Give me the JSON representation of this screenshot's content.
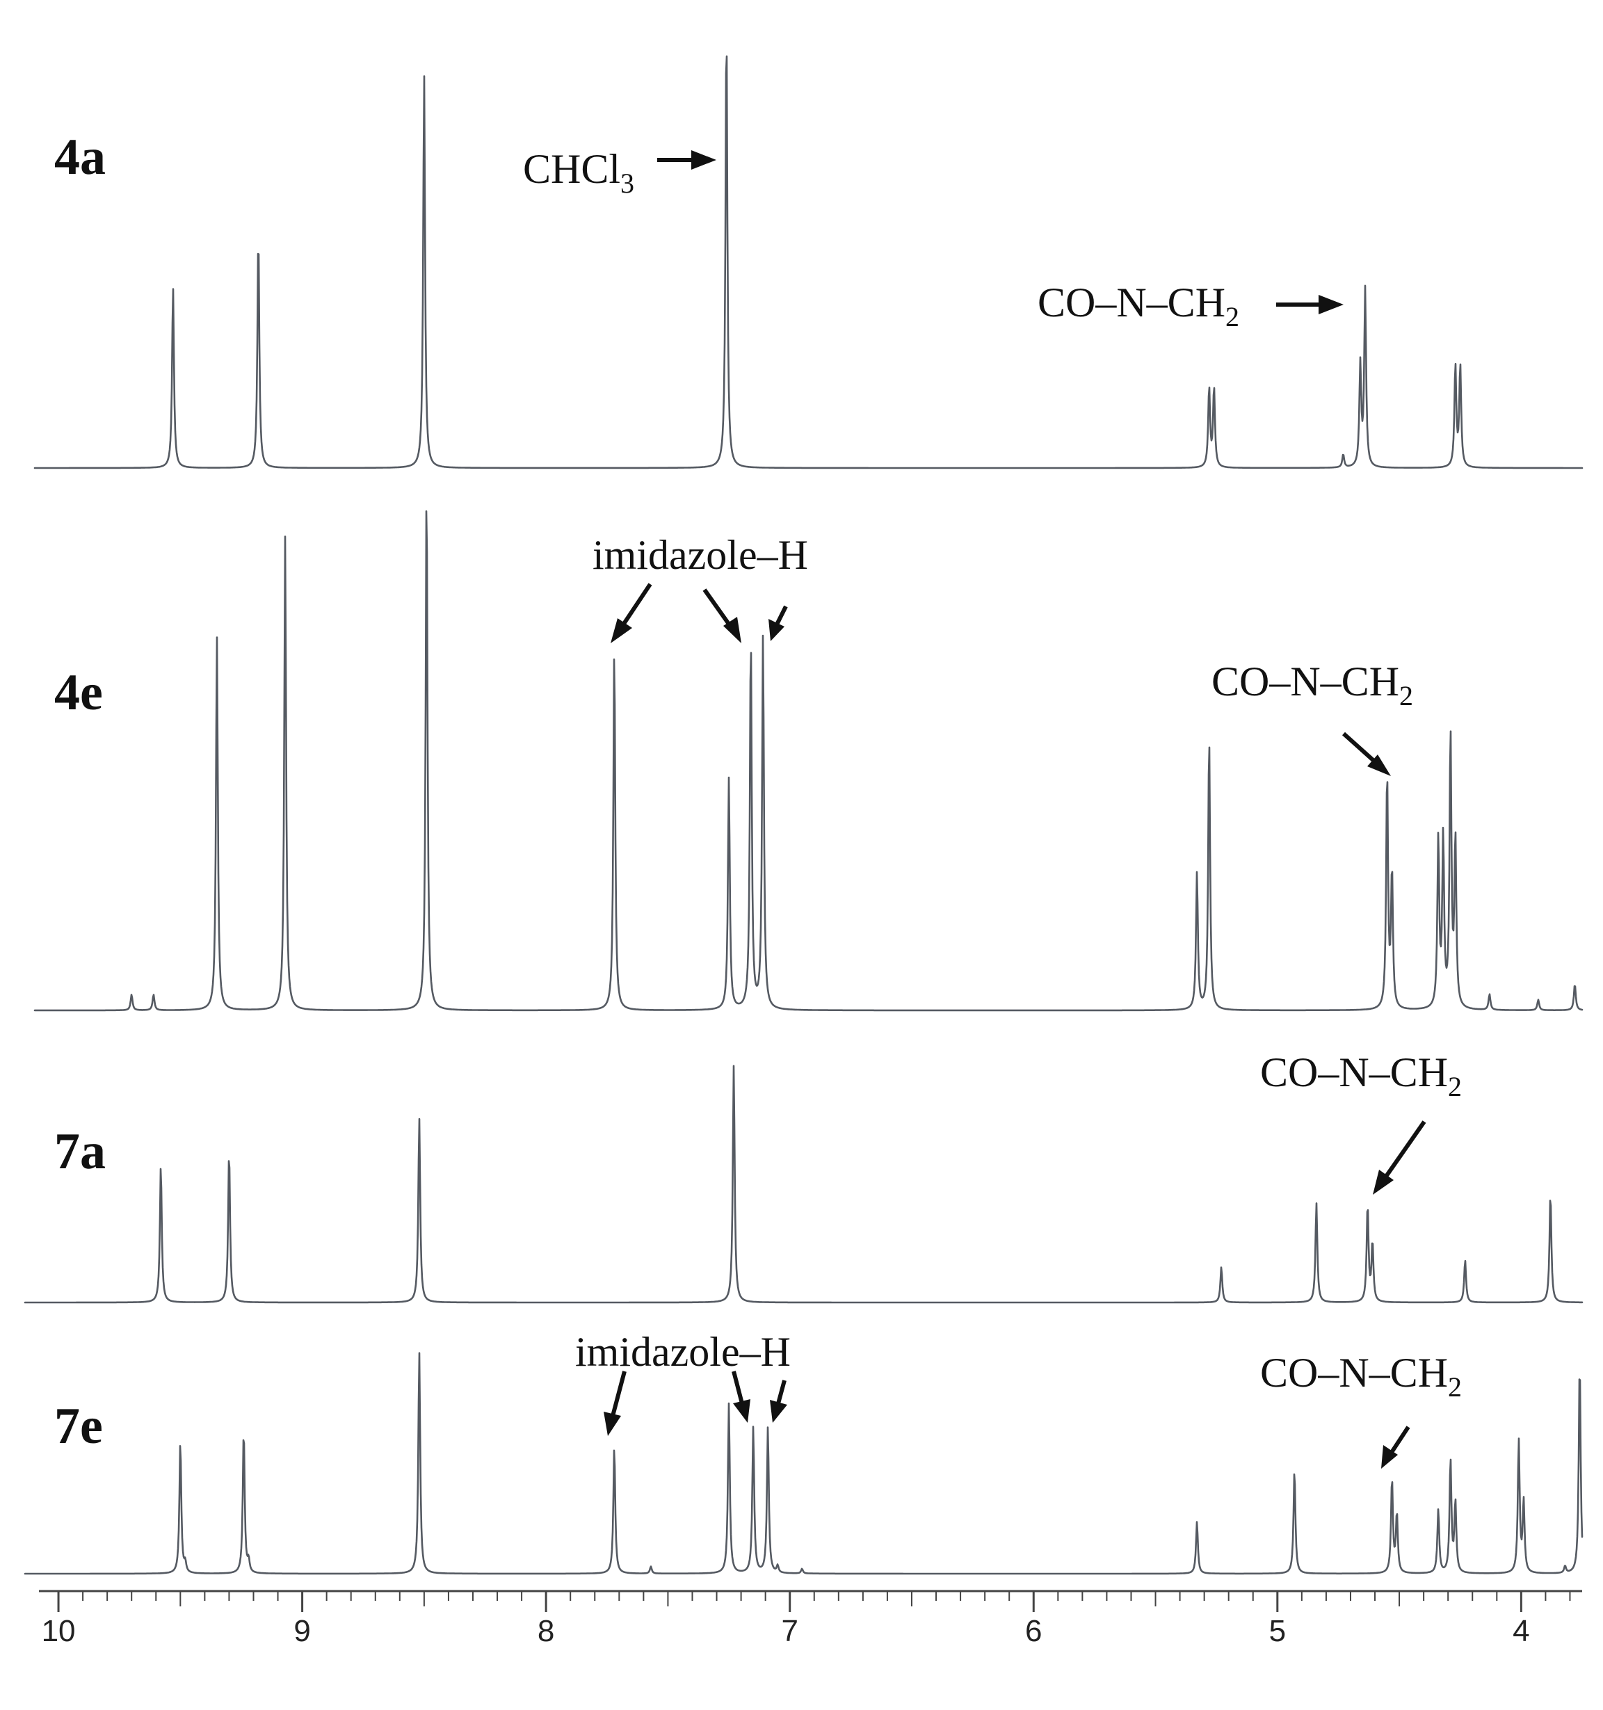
{
  "chart_data": {
    "type": "line",
    "title": "",
    "xlabel": "",
    "ylabel": "",
    "x_axis": {
      "reversed": true,
      "xlim": [
        10.08,
        3.75
      ],
      "ticks": [
        10,
        9,
        8,
        7,
        6,
        5,
        4
      ],
      "tick_labels": [
        "10",
        "9",
        "8",
        "7",
        "6",
        "5",
        "4"
      ]
    },
    "grid": false,
    "legend": "none",
    "spectra": [
      {
        "label": "4a",
        "peaks": [
          {
            "ppm": 9.53,
            "height": 0.41
          },
          {
            "ppm": 9.18,
            "height": 0.53
          },
          {
            "ppm": 8.5,
            "height": 0.89
          },
          {
            "ppm": 7.26,
            "height": 1.0
          },
          {
            "ppm": 5.28,
            "height": 0.18
          },
          {
            "ppm": 5.26,
            "height": 0.18
          },
          {
            "ppm": 4.73,
            "height": 0.03
          },
          {
            "ppm": 4.66,
            "height": 0.23
          },
          {
            "ppm": 4.64,
            "height": 0.4
          },
          {
            "ppm": 4.27,
            "height": 0.23
          },
          {
            "ppm": 4.25,
            "height": 0.23
          }
        ],
        "annotations": [
          {
            "text": "CHCl",
            "sub": "3",
            "target_ppm": 7.26
          },
          {
            "text": "CO–N–CH",
            "sub": "2",
            "target_ppm": 4.65
          }
        ]
      },
      {
        "label": "4e",
        "peaks": [
          {
            "ppm": 9.7,
            "height": 0.03
          },
          {
            "ppm": 9.61,
            "height": 0.03
          },
          {
            "ppm": 9.35,
            "height": 0.71
          },
          {
            "ppm": 9.07,
            "height": 0.9
          },
          {
            "ppm": 8.49,
            "height": 1.0
          },
          {
            "ppm": 7.72,
            "height": 0.69
          },
          {
            "ppm": 7.25,
            "height": 0.44
          },
          {
            "ppm": 7.16,
            "height": 0.71
          },
          {
            "ppm": 7.11,
            "height": 0.71
          },
          {
            "ppm": 5.33,
            "height": 0.26
          },
          {
            "ppm": 5.28,
            "height": 0.52
          },
          {
            "ppm": 4.55,
            "height": 0.45
          },
          {
            "ppm": 4.53,
            "height": 0.26
          },
          {
            "ppm": 4.34,
            "height": 0.32
          },
          {
            "ppm": 4.32,
            "height": 0.32
          },
          {
            "ppm": 4.29,
            "height": 0.52
          },
          {
            "ppm": 4.27,
            "height": 0.32
          },
          {
            "ppm": 4.13,
            "height": 0.03
          },
          {
            "ppm": 3.93,
            "height": 0.02
          },
          {
            "ppm": 3.78,
            "height": 0.05
          }
        ],
        "annotations": [
          {
            "text": "imidazole–H",
            "target_ppm": [
              7.72,
              7.16,
              7.11
            ]
          },
          {
            "text": "CO–N–CH",
            "sub": "2",
            "target_ppm": 4.55
          }
        ]
      },
      {
        "label": "7a",
        "peaks": [
          {
            "ppm": 9.58,
            "height": 0.58
          },
          {
            "ppm": 9.3,
            "height": 0.64
          },
          {
            "ppm": 8.52,
            "height": 0.78
          },
          {
            "ppm": 7.23,
            "height": 1.0
          },
          {
            "ppm": 5.23,
            "height": 0.15
          },
          {
            "ppm": 4.84,
            "height": 0.42
          },
          {
            "ppm": 4.63,
            "height": 0.41
          },
          {
            "ppm": 4.61,
            "height": 0.25
          },
          {
            "ppm": 4.23,
            "height": 0.18
          },
          {
            "ppm": 3.88,
            "height": 0.46
          }
        ],
        "annotations": [
          {
            "text": "CO–N–CH",
            "sub": "2",
            "target_ppm": 4.62
          }
        ]
      },
      {
        "label": "7e",
        "peaks": [
          {
            "ppm": 9.5,
            "height": 0.56
          },
          {
            "ppm": 9.48,
            "height": 0.04
          },
          {
            "ppm": 9.24,
            "height": 0.61
          },
          {
            "ppm": 9.22,
            "height": 0.05
          },
          {
            "ppm": 8.52,
            "height": 0.94
          },
          {
            "ppm": 7.72,
            "height": 0.54
          },
          {
            "ppm": 7.57,
            "height": 0.03
          },
          {
            "ppm": 7.25,
            "height": 0.72
          },
          {
            "ppm": 7.15,
            "height": 0.62
          },
          {
            "ppm": 7.09,
            "height": 0.62
          },
          {
            "ppm": 7.05,
            "height": 0.03
          },
          {
            "ppm": 6.95,
            "height": 0.02
          },
          {
            "ppm": 5.33,
            "height": 0.22
          },
          {
            "ppm": 4.93,
            "height": 0.44
          },
          {
            "ppm": 4.53,
            "height": 0.4
          },
          {
            "ppm": 4.51,
            "height": 0.25
          },
          {
            "ppm": 4.34,
            "height": 0.27
          },
          {
            "ppm": 4.29,
            "height": 0.48
          },
          {
            "ppm": 4.27,
            "height": 0.3
          },
          {
            "ppm": 4.01,
            "height": 0.56
          },
          {
            "ppm": 3.99,
            "height": 0.3
          },
          {
            "ppm": 3.82,
            "height": 0.03
          },
          {
            "ppm": 3.76,
            "height": 0.9
          }
        ],
        "annotations": [
          {
            "text": "imidazole–H",
            "target_ppm": [
              7.72,
              7.15,
              7.09
            ]
          },
          {
            "text": "CO–N–CH",
            "sub": "2",
            "target_ppm": 4.53
          }
        ]
      }
    ]
  }
}
